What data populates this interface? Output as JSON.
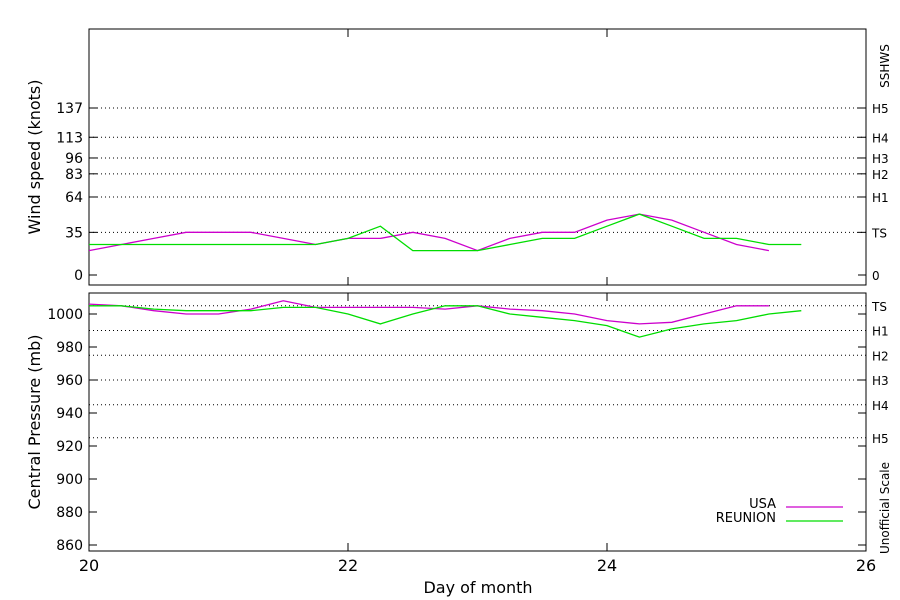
{
  "chart_data": {
    "type": "line",
    "xlabel": "Day of month",
    "x_ticks": [
      "20",
      "22",
      "24",
      "26"
    ],
    "xlim": [
      20,
      26
    ],
    "panels": [
      {
        "name": "wind",
        "ylabel": "Wind speed (knots)",
        "ylim": [
          0,
          180
        ],
        "y_ticks": [
          0,
          35,
          64,
          83,
          96,
          113,
          137
        ],
        "right_scale_title": "SSHWS",
        "right_labels": [
          {
            "label": "0",
            "value": 0
          },
          {
            "label": "TS",
            "value": 35
          },
          {
            "label": "H1",
            "value": 64
          },
          {
            "label": "H2",
            "value": 83
          },
          {
            "label": "H3",
            "value": 96
          },
          {
            "label": "H4",
            "value": 113
          },
          {
            "label": "H5",
            "value": 137
          }
        ],
        "gridlines": [
          35,
          64,
          83,
          96,
          113,
          137
        ],
        "series": [
          {
            "name": "USA",
            "color": "#cc00cc",
            "x": [
              20.0,
              20.25,
              20.5,
              20.75,
              21.0,
              21.25,
              21.5,
              21.75,
              22.0,
              22.25,
              22.5,
              22.75,
              23.0,
              23.25,
              23.5,
              23.75,
              24.0,
              24.25,
              24.5,
              24.75,
              25.0,
              25.25
            ],
            "y": [
              20,
              25,
              30,
              35,
              35,
              35,
              30,
              25,
              30,
              30,
              35,
              30,
              20,
              30,
              35,
              35,
              45,
              50,
              45,
              35,
              25,
              20
            ]
          },
          {
            "name": "REUNION",
            "color": "#00dd00",
            "x": [
              20.0,
              20.25,
              20.5,
              20.75,
              21.0,
              21.25,
              21.5,
              21.75,
              22.0,
              22.25,
              22.5,
              22.75,
              23.0,
              23.25,
              23.5,
              23.75,
              24.0,
              24.25,
              24.5,
              24.75,
              25.0,
              25.25,
              25.5
            ],
            "y": [
              25,
              25,
              25,
              25,
              25,
              25,
              25,
              25,
              30,
              40,
              20,
              20,
              20,
              25,
              30,
              30,
              40,
              50,
              40,
              30,
              30,
              25,
              25
            ]
          }
        ]
      },
      {
        "name": "pressure",
        "ylabel": "Central Pressure (mb)",
        "ylim": [
          855,
          1012
        ],
        "y_ticks": [
          860,
          880,
          900,
          920,
          940,
          960,
          980,
          1000
        ],
        "right_scale_title": "Unofficial Scale",
        "right_labels": [
          {
            "label": "TS",
            "value": 1005
          },
          {
            "label": "H1",
            "value": 990
          },
          {
            "label": "H2",
            "value": 975
          },
          {
            "label": "H3",
            "value": 960
          },
          {
            "label": "H4",
            "value": 945
          },
          {
            "label": "H5",
            "value": 925
          }
        ],
        "gridlines": [
          1005,
          990,
          975,
          960,
          945,
          925
        ],
        "series": [
          {
            "name": "USA",
            "color": "#cc00cc",
            "x": [
              20.0,
              20.25,
              20.5,
              20.75,
              21.0,
              21.25,
              21.5,
              21.75,
              22.0,
              22.25,
              22.5,
              22.75,
              23.0,
              23.25,
              23.5,
              23.75,
              24.0,
              24.25,
              24.5,
              24.75,
              25.0,
              25.25
            ],
            "y": [
              1006,
              1005,
              1002,
              1000,
              1000,
              1003,
              1008,
              1004,
              1004,
              1004,
              1004,
              1003,
              1005,
              1003,
              1002,
              1000,
              996,
              994,
              995,
              1000,
              1005,
              1005
            ]
          },
          {
            "name": "REUNION",
            "color": "#00dd00",
            "x": [
              20.0,
              20.25,
              20.5,
              20.75,
              21.0,
              21.25,
              21.5,
              21.75,
              22.0,
              22.25,
              22.5,
              22.75,
              23.0,
              23.25,
              23.5,
              23.75,
              24.0,
              24.25,
              24.5,
              24.75,
              25.0,
              25.25,
              25.5
            ],
            "y": [
              1005,
              1005,
              1003,
              1002,
              1002,
              1002,
              1004,
              1004,
              1000,
              994,
              1000,
              1005,
              1005,
              1000,
              998,
              996,
              993,
              986,
              991,
              994,
              996,
              1000,
              1002
            ]
          }
        ]
      }
    ],
    "legend": {
      "placement": "bottom-right",
      "entries": [
        "USA",
        "REUNION"
      ]
    }
  }
}
